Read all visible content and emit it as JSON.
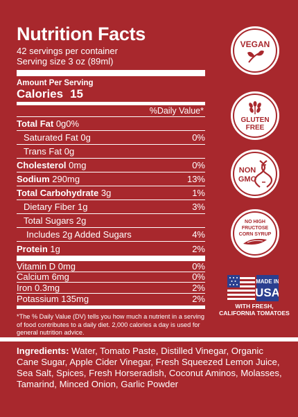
{
  "title": "Nutrition Facts",
  "servings": "42 servings per container",
  "serving_size": "Serving size   3 oz (89ml)",
  "amount_per_serving": "Amount Per Serving",
  "calories_label": "Calories",
  "calories_value": "15",
  "dv_header": "%Daily Value*",
  "nutrients": [
    {
      "label": "Total Fat",
      "amount": "0g",
      "pct": "0%"
    },
    {
      "label": "Saturated Fat",
      "amount": "0g",
      "pct": "0%"
    },
    {
      "label": "Trans Fat",
      "amount": "0g",
      "pct": ""
    },
    {
      "label": "Cholesterol",
      "amount": "0mg",
      "pct": "0%"
    },
    {
      "label": "Sodium",
      "amount": "290mg",
      "pct": "13%"
    },
    {
      "label": "Total Carbohydrate",
      "amount": "3g",
      "pct": "1%"
    },
    {
      "label": "Dietary Fiber",
      "amount": "1g",
      "pct": "3%"
    },
    {
      "label": "Total Sugars",
      "amount": "2g",
      "pct": ""
    },
    {
      "label": "Includes 2g Added Sugars",
      "amount": "",
      "pct": "4%"
    },
    {
      "label": "Protein",
      "amount": "1g",
      "pct": "2%"
    }
  ],
  "vitamins": [
    {
      "label": "Vitamin D 0mg",
      "pct": "0%"
    },
    {
      "label": "Calcium 6mg",
      "pct": "0%"
    },
    {
      "label": "Iron 0.3mg",
      "pct": "2%"
    },
    {
      "label": "Potassium 135mg",
      "pct": "2%"
    }
  ],
  "footnote": "*The % Daily Value (DV) tells you how much a nutrient in a serving of food contributes to a daily diet. 2,000 calories a day is used for general nutrition advice.",
  "ingredients_label": "Ingredients:",
  "ingredients_text": " Water, Tomato Paste, Distilled Vinegar, Organic Cane Sugar, Apple Cider Vinegar, Fresh Squeezed Lemon Juice, Sea Salt, Spices, Fresh Horseradish, Coconut Aminos, Molasses, Tamarind, Minced Onion, Garlic Powder",
  "badges": {
    "vegan": "VEGAN",
    "gluten_free_1": "GLUTEN",
    "gluten_free_2": "FREE",
    "non_gmo_1": "NON",
    "non_gmo_2": "GMO",
    "hfcs_1": "NO HIGH",
    "hfcs_2": "FRUCTOSE",
    "hfcs_3": "CORN SYRUP",
    "made_in_1": "MADE IN",
    "made_in_2": "USA",
    "made_in_caption_1": "WITH FRESH,",
    "made_in_caption_2": "CALIFORNIA TOMATOES"
  },
  "colors": {
    "background": "#a8282d",
    "foreground": "#ffffff",
    "flag_blue": "#2a3f8f"
  },
  "icons": [
    "leaf-icon",
    "wheat-icon",
    "dna-icon",
    "corn-icon",
    "us-flag-icon"
  ]
}
